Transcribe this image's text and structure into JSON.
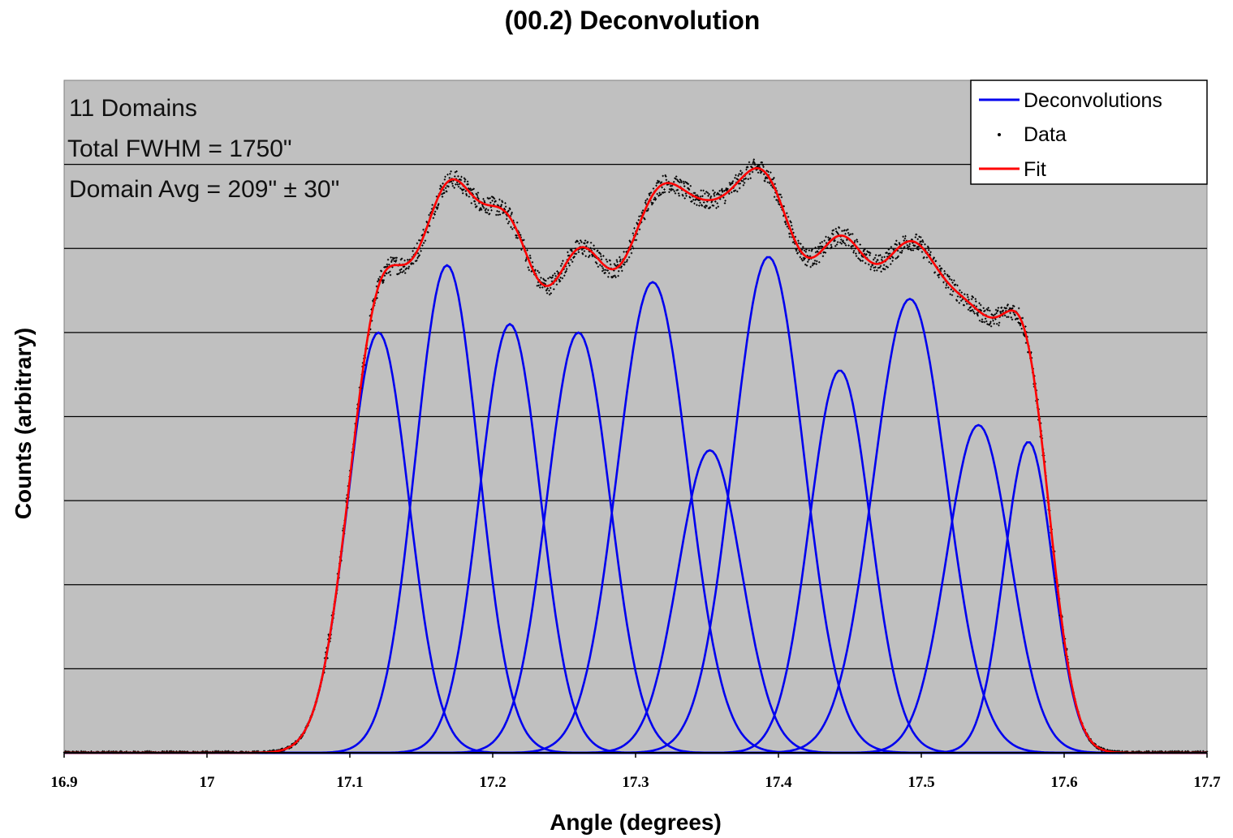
{
  "chart_data": {
    "type": "line",
    "title": "(00.2) Deconvolution",
    "xlabel": "Angle (degrees)",
    "ylabel": "Counts (arbitrary)",
    "xlim": [
      16.9,
      17.7
    ],
    "ylim": [
      0,
      8
    ],
    "x_ticks": [
      "16.9",
      "17",
      "17.1",
      "17.2",
      "17.3",
      "17.4",
      "17.5",
      "17.6",
      "17.7"
    ],
    "y_gridlines": [
      1,
      2,
      3,
      4,
      5,
      6,
      7
    ],
    "y_tick_labels_shown": false,
    "grid": true,
    "legend_position": "top-right",
    "legend": [
      {
        "label": "Deconvolutions",
        "style": "line",
        "color": "#0000ee"
      },
      {
        "label": "Data",
        "style": "marker",
        "color": "#000000"
      },
      {
        "label": "Fit",
        "style": "line",
        "color": "#ff0000"
      }
    ],
    "annotations": [
      "11 Domains",
      "Total FWHM = 1750\"",
      "Domain Avg = 209\" ± 30\""
    ],
    "plot_background": "#c0c0c0",
    "deconvolution_peaks": [
      {
        "center": 17.12,
        "height": 5.0,
        "fwhm": 0.05
      },
      {
        "center": 17.168,
        "height": 5.8,
        "fwhm": 0.052
      },
      {
        "center": 17.212,
        "height": 5.1,
        "fwhm": 0.05
      },
      {
        "center": 17.26,
        "height": 5.0,
        "fwhm": 0.052
      },
      {
        "center": 17.312,
        "height": 5.6,
        "fwhm": 0.058
      },
      {
        "center": 17.352,
        "height": 3.6,
        "fwhm": 0.052
      },
      {
        "center": 17.393,
        "height": 5.9,
        "fwhm": 0.058
      },
      {
        "center": 17.443,
        "height": 4.55,
        "fwhm": 0.05
      },
      {
        "center": 17.492,
        "height": 5.4,
        "fwhm": 0.06
      },
      {
        "center": 17.54,
        "height": 3.9,
        "fwhm": 0.052
      },
      {
        "center": 17.575,
        "height": 3.7,
        "fwhm": 0.04
      }
    ]
  }
}
